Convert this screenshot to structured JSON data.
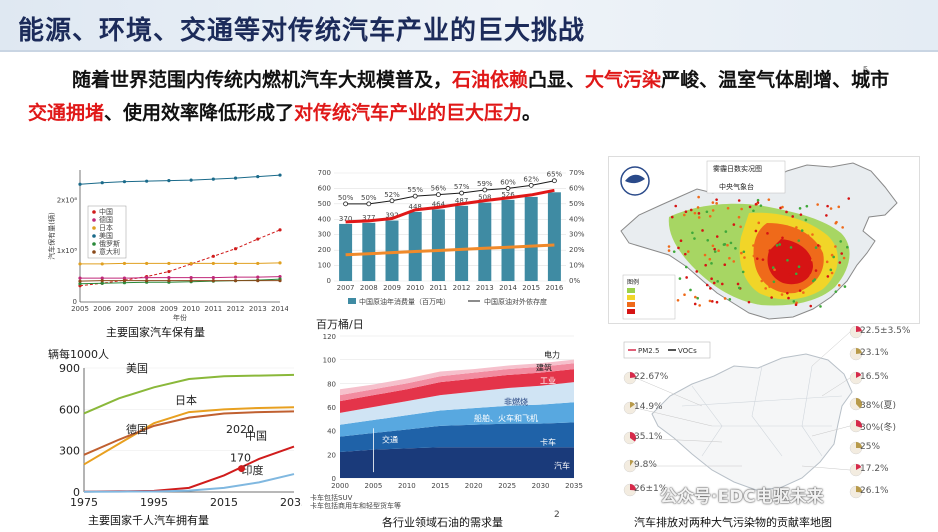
{
  "title": "能源、环境、交通等对传统汽车产业的巨大挑战",
  "intro": {
    "p1": "随着世界范围内传统内燃机汽车大规模普及，",
    "r1": "石油依赖",
    "p2": "凸显、",
    "r2": "大气污染",
    "p3": "严峻、温室气体剧增、城市",
    "r3": "交通拥堵",
    "p4": "、使用效率降低形成了",
    "r4": "对传统汽车产业的巨大压力",
    "p5": "。"
  },
  "captions": {
    "ownership": "主要国家汽车保有量",
    "per_thousand": "主要国家千人汽车拥有量",
    "oil_demand": "各行业领域石油的需求量",
    "pollution": "汽车排放对两种大气污染物的贡献率地图"
  },
  "page_number": "2",
  "watermark": "公众号·EDC电驱未来",
  "map_china": {
    "header": "雾霾日数实况图",
    "subheader": "中央气象台",
    "legend_title": "图例"
  },
  "pollution_map": {
    "legend": [
      "PM2.5",
      "VOCs"
    ],
    "left_values": [
      "22.67%",
      "14.9%",
      "35.1%",
      "9.8%",
      "26±1%"
    ],
    "right_values": [
      "22.5±3.5%",
      "23.1%",
      "16.5%",
      "38%(夏)",
      "30%(冬)",
      "25%",
      "17.2%",
      "26.1%"
    ]
  },
  "chart_data": [
    {
      "type": "line",
      "x": [
        2005,
        2006,
        2007,
        2008,
        2009,
        2010,
        2011,
        2012,
        2013,
        2014
      ],
      "yticks": [
        "0",
        "1x10⁸",
        "2x10⁸"
      ],
      "xlabel": "年份",
      "ylabel": "汽车保有量(辆)",
      "series": [
        {
          "name": "中国",
          "color": "#d01c1c",
          "values": [
            0.32,
            0.37,
            0.43,
            0.5,
            0.6,
            0.75,
            0.9,
            1.05,
            1.24,
            1.42
          ]
        },
        {
          "name": "德国",
          "color": "#c0287a",
          "values": [
            0.47,
            0.47,
            0.47,
            0.48,
            0.48,
            0.48,
            0.48,
            0.49,
            0.49,
            0.5
          ]
        },
        {
          "name": "日本",
          "color": "#e0a020",
          "values": [
            0.75,
            0.75,
            0.76,
            0.76,
            0.76,
            0.76,
            0.76,
            0.76,
            0.76,
            0.77
          ]
        },
        {
          "name": "美国",
          "color": "#1a6a8a",
          "values": [
            2.32,
            2.35,
            2.37,
            2.38,
            2.39,
            2.4,
            2.42,
            2.44,
            2.47,
            2.5
          ]
        },
        {
          "name": "俄罗斯",
          "color": "#2a8a3a",
          "values": [
            0.36,
            0.37,
            0.38,
            0.39,
            0.39,
            0.4,
            0.41,
            0.42,
            0.43,
            0.45
          ]
        },
        {
          "name": "意大利",
          "color": "#8a4a1a",
          "values": [
            0.41,
            0.42,
            0.42,
            0.42,
            0.42,
            0.42,
            0.42,
            0.42,
            0.42,
            0.42
          ]
        }
      ]
    },
    {
      "type": "bar",
      "categories": [
        "2007",
        "2008",
        "2009",
        "2010",
        "2011",
        "2012",
        "2013",
        "2014",
        "2015",
        "2016"
      ],
      "ylim": [
        0,
        700
      ],
      "y2lim": [
        0,
        70
      ],
      "yticks": [
        "0",
        "100",
        "200",
        "300",
        "400",
        "500",
        "600",
        "700"
      ],
      "y2ticks": [
        "0%",
        "10%",
        "20%",
        "30%",
        "40%",
        "50%",
        "60%",
        "70%"
      ],
      "series": [
        {
          "name": "中国原油年消费量（百万吨）",
          "color": "#3f8ba3",
          "values": [
            370,
            377,
            392,
            448,
            464,
            487,
            508,
            526,
            545,
            575
          ]
        },
        {
          "name": "中国原油对外依存度",
          "color": "#1a1a1a",
          "values": [
            50,
            50,
            52,
            55,
            56,
            57,
            59,
            60,
            62,
            65
          ]
        }
      ],
      "bar_labels": [
        "370",
        "377",
        "392",
        "448",
        "464",
        "487",
        "508",
        "526",
        "",
        ""
      ],
      "pct_labels": [
        "50%",
        "50%",
        "52%",
        "55%",
        "56%",
        "57%",
        "59%",
        "60%",
        "62%",
        "65%"
      ]
    },
    {
      "type": "line",
      "x": [
        1975,
        1985,
        1995,
        2005,
        2015,
        2025,
        2035
      ],
      "xticks": [
        "1975",
        "1995",
        "2015",
        "2035"
      ],
      "yticks": [
        "0",
        "300",
        "600",
        "900"
      ],
      "ylabel": "辆每1000人",
      "annotation_year": "2020",
      "annotation_value": "170",
      "series": [
        {
          "name": "美国",
          "color": "#8ab83a",
          "values": [
            570,
            680,
            760,
            820,
            840,
            845,
            850
          ]
        },
        {
          "name": "日本",
          "color": "#e8a020",
          "values": [
            200,
            350,
            500,
            580,
            600,
            610,
            615
          ]
        },
        {
          "name": "德国",
          "color": "#c06030",
          "values": [
            270,
            380,
            480,
            540,
            570,
            580,
            585
          ]
        },
        {
          "name": "中国",
          "color": "#d01c1c",
          "values": [
            3,
            5,
            8,
            30,
            120,
            240,
            330
          ]
        },
        {
          "name": "印度",
          "color": "#80b8e0",
          "values": [
            2,
            3,
            4,
            10,
            30,
            70,
            130
          ]
        }
      ]
    },
    {
      "type": "area",
      "x": [
        2000,
        2005,
        2010,
        2015,
        2020,
        2025,
        2030,
        2035
      ],
      "ylim": [
        0,
        120
      ],
      "yticks": [
        "0",
        "20",
        "40",
        "60",
        "80",
        "100",
        "120"
      ],
      "ylabel": "百万桶/日",
      "series": [
        {
          "name": "汽车",
          "color": "#1a3a7a",
          "values": [
            22,
            24,
            25,
            26,
            26,
            26,
            26,
            26
          ]
        },
        {
          "name": "卡车",
          "color": "#1f62a8",
          "values": [
            13,
            14,
            16,
            18,
            19,
            20,
            20,
            21
          ]
        },
        {
          "name": "交通",
          "color": "#3b8fd0",
          "values": [
            0,
            0,
            0,
            0,
            0,
            0,
            0,
            0
          ]
        },
        {
          "name": "船舶、火车和飞机",
          "color": "#58a8e0",
          "values": [
            10,
            11,
            12,
            13,
            14,
            15,
            16,
            17
          ]
        },
        {
          "name": "非燃烧",
          "color": "#d0e4f4",
          "values": [
            10,
            11,
            12,
            13,
            14,
            15,
            16,
            17
          ]
        },
        {
          "name": "工业",
          "color": "#e4344a",
          "values": [
            10,
            10,
            10,
            11,
            11,
            11,
            11,
            11
          ]
        },
        {
          "name": "建筑",
          "color": "#f28ca0",
          "values": [
            5,
            5,
            5,
            5,
            5,
            5,
            5,
            5
          ]
        },
        {
          "name": "电力",
          "color": "#f6c0cc",
          "values": [
            5,
            4,
            4,
            4,
            3,
            3,
            3,
            3
          ]
        }
      ],
      "footnote_1": "卡车包括SUV",
      "footnote_2": "卡车包括商用车和轻型货车等"
    }
  ]
}
